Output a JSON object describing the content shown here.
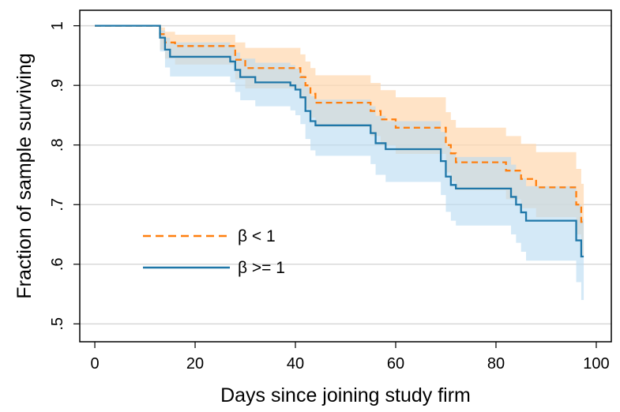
{
  "chart_data": {
    "type": "line",
    "xlabel": "Days since joining study firm",
    "ylabel": "Fraction of sample surviving",
    "xlim": [
      -3,
      103
    ],
    "ylim": [
      0.47,
      1.026
    ],
    "x_ticks": [
      0,
      20,
      40,
      60,
      80,
      100
    ],
    "x_tick_labels": [
      "0",
      "20",
      "40",
      "60",
      "80",
      "100"
    ],
    "y_ticks": [
      0.5,
      0.6,
      0.7,
      0.8,
      0.9,
      1.0
    ],
    "y_tick_labels": [
      ".5",
      ".6",
      ".7",
      ".8",
      ".9",
      "1"
    ],
    "grid": "horizontal",
    "legend_position": "lower-left inside plot",
    "series": [
      {
        "name": "β < 1",
        "style": "dashed",
        "color": "#ff7f0e",
        "band_color": "#ffd8b0",
        "steps": [
          [
            0,
            1.0
          ],
          [
            13,
            0.986
          ],
          [
            14,
            0.972
          ],
          [
            16,
            0.966
          ],
          [
            28,
            0.943
          ],
          [
            30,
            0.929
          ],
          [
            41,
            0.914
          ],
          [
            42,
            0.9
          ],
          [
            43,
            0.886
          ],
          [
            44,
            0.871
          ],
          [
            55,
            0.857
          ],
          [
            57,
            0.843
          ],
          [
            60,
            0.829
          ],
          [
            70,
            0.8
          ],
          [
            71,
            0.786
          ],
          [
            72,
            0.771
          ],
          [
            82,
            0.757
          ],
          [
            85,
            0.743
          ],
          [
            88,
            0.729
          ],
          [
            96,
            0.7
          ],
          [
            97,
            0.671
          ],
          [
            97.5,
            0.671
          ]
        ],
        "lower": [
          [
            0,
            1.0
          ],
          [
            13,
            0.96
          ],
          [
            14,
            0.945
          ],
          [
            16,
            0.935
          ],
          [
            28,
            0.91
          ],
          [
            30,
            0.895
          ],
          [
            41,
            0.877
          ],
          [
            42,
            0.861
          ],
          [
            43,
            0.846
          ],
          [
            44,
            0.83
          ],
          [
            55,
            0.815
          ],
          [
            57,
            0.8
          ],
          [
            60,
            0.785
          ],
          [
            70,
            0.754
          ],
          [
            71,
            0.739
          ],
          [
            72,
            0.724
          ],
          [
            82,
            0.709
          ],
          [
            85,
            0.694
          ],
          [
            88,
            0.679
          ],
          [
            96,
            0.65
          ],
          [
            97,
            0.615
          ],
          [
            97.5,
            0.615
          ]
        ],
        "upper": [
          [
            0,
            1.0
          ],
          [
            13,
            0.997
          ],
          [
            14,
            0.99
          ],
          [
            16,
            0.985
          ],
          [
            28,
            0.972
          ],
          [
            30,
            0.963
          ],
          [
            41,
            0.952
          ],
          [
            42,
            0.94
          ],
          [
            43,
            0.929
          ],
          [
            44,
            0.917
          ],
          [
            55,
            0.904
          ],
          [
            57,
            0.892
          ],
          [
            60,
            0.88
          ],
          [
            70,
            0.855
          ],
          [
            71,
            0.842
          ],
          [
            72,
            0.829
          ],
          [
            82,
            0.815
          ],
          [
            85,
            0.802
          ],
          [
            88,
            0.788
          ],
          [
            96,
            0.76
          ],
          [
            97,
            0.735
          ],
          [
            97.5,
            0.735
          ]
        ]
      },
      {
        "name": "β >= 1",
        "style": "solid",
        "color": "#1f77a8",
        "band_color": "#b9dcf2",
        "steps": [
          [
            0,
            1.0
          ],
          [
            13,
            0.98
          ],
          [
            14,
            0.96
          ],
          [
            15,
            0.948
          ],
          [
            27,
            0.94
          ],
          [
            28,
            0.926
          ],
          [
            29,
            0.914
          ],
          [
            32,
            0.905
          ],
          [
            39,
            0.9
          ],
          [
            40,
            0.893
          ],
          [
            41,
            0.88
          ],
          [
            42,
            0.857
          ],
          [
            43,
            0.84
          ],
          [
            44,
            0.833
          ],
          [
            55,
            0.82
          ],
          [
            56,
            0.803
          ],
          [
            58,
            0.793
          ],
          [
            64,
            0.793
          ],
          [
            69,
            0.773
          ],
          [
            70,
            0.747
          ],
          [
            71,
            0.733
          ],
          [
            72,
            0.727
          ],
          [
            83,
            0.713
          ],
          [
            84,
            0.7
          ],
          [
            85,
            0.687
          ],
          [
            86,
            0.673
          ],
          [
            96,
            0.64
          ],
          [
            97,
            0.613
          ],
          [
            97.5,
            0.613
          ]
        ],
        "lower": [
          [
            0,
            1.0
          ],
          [
            13,
            0.957
          ],
          [
            14,
            0.93
          ],
          [
            15,
            0.915
          ],
          [
            27,
            0.905
          ],
          [
            28,
            0.889
          ],
          [
            29,
            0.875
          ],
          [
            32,
            0.865
          ],
          [
            39,
            0.858
          ],
          [
            40,
            0.85
          ],
          [
            41,
            0.835
          ],
          [
            42,
            0.81
          ],
          [
            43,
            0.791
          ],
          [
            44,
            0.782
          ],
          [
            55,
            0.768
          ],
          [
            56,
            0.75
          ],
          [
            58,
            0.738
          ],
          [
            64,
            0.738
          ],
          [
            69,
            0.716
          ],
          [
            70,
            0.688
          ],
          [
            71,
            0.673
          ],
          [
            72,
            0.665
          ],
          [
            83,
            0.65
          ],
          [
            84,
            0.636
          ],
          [
            85,
            0.621
          ],
          [
            86,
            0.606
          ],
          [
            96,
            0.57
          ],
          [
            97,
            0.54
          ],
          [
            97.5,
            0.54
          ]
        ],
        "upper": [
          [
            0,
            1.0
          ],
          [
            13,
            0.992
          ],
          [
            14,
            0.98
          ],
          [
            15,
            0.972
          ],
          [
            27,
            0.966
          ],
          [
            28,
            0.955
          ],
          [
            29,
            0.945
          ],
          [
            32,
            0.938
          ],
          [
            39,
            0.934
          ],
          [
            40,
            0.928
          ],
          [
            41,
            0.917
          ],
          [
            42,
            0.897
          ],
          [
            43,
            0.882
          ],
          [
            44,
            0.876
          ],
          [
            55,
            0.865
          ],
          [
            56,
            0.849
          ],
          [
            58,
            0.84
          ],
          [
            64,
            0.84
          ],
          [
            69,
            0.822
          ],
          [
            70,
            0.798
          ],
          [
            71,
            0.786
          ],
          [
            72,
            0.78
          ],
          [
            83,
            0.767
          ],
          [
            84,
            0.755
          ],
          [
            85,
            0.744
          ],
          [
            86,
            0.731
          ],
          [
            96,
            0.7
          ],
          [
            97,
            0.676
          ],
          [
            97.5,
            0.676
          ]
        ]
      }
    ]
  }
}
